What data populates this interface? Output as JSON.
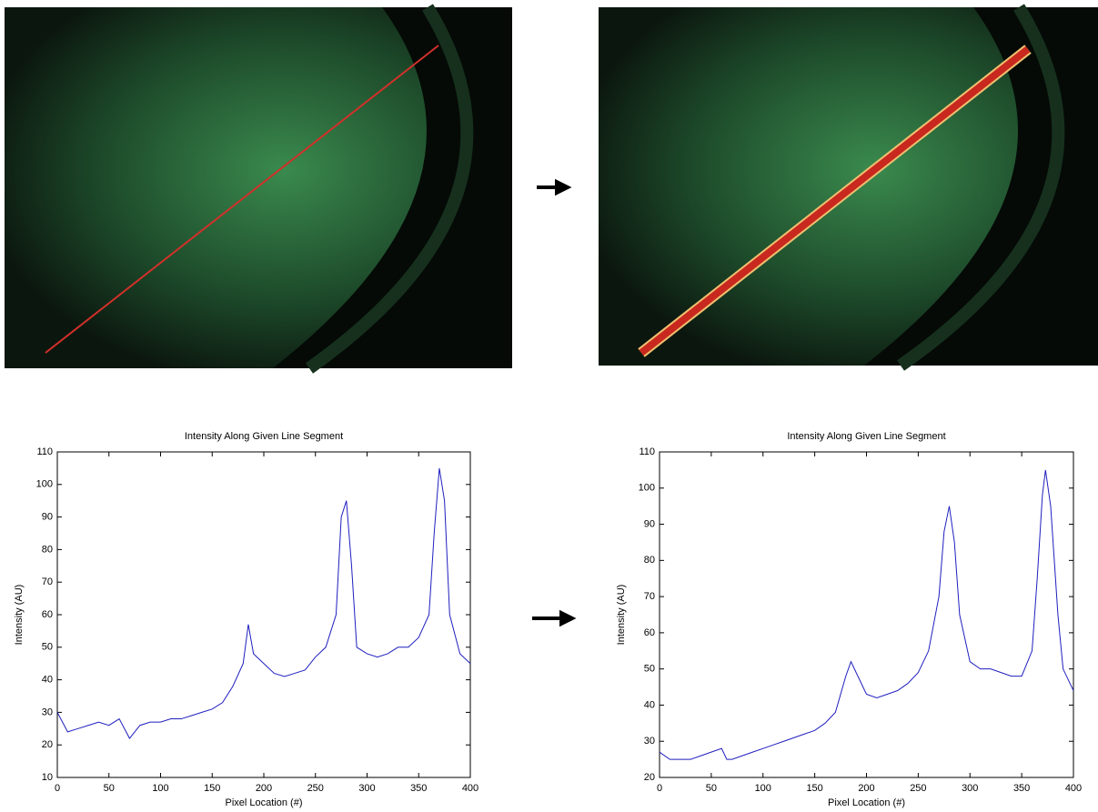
{
  "chart_data": [
    {
      "type": "line",
      "title": "Intensity Along Given Line Segment",
      "x_label": "Pixel Location (#)",
      "y_label": "Intensity (AU)",
      "color": "#1f1fbf",
      "x": [
        0,
        10,
        20,
        30,
        40,
        50,
        60,
        70,
        80,
        90,
        100,
        110,
        120,
        130,
        140,
        150,
        160,
        170,
        180,
        185,
        190,
        200,
        210,
        220,
        230,
        240,
        250,
        260,
        270,
        275,
        280,
        285,
        290,
        300,
        310,
        320,
        330,
        340,
        350,
        360,
        365,
        370,
        375,
        380,
        390,
        400
      ],
      "values": [
        30,
        24,
        25,
        26,
        27,
        26,
        28,
        22,
        26,
        27,
        27,
        28,
        28,
        29,
        30,
        31,
        33,
        38,
        45,
        57,
        48,
        45,
        42,
        41,
        42,
        43,
        47,
        50,
        60,
        90,
        95,
        75,
        50,
        48,
        47,
        48,
        50,
        50,
        53,
        60,
        85,
        105,
        95,
        60,
        48,
        45
      ],
      "xlim": [
        0,
        400
      ],
      "ylim": [
        10,
        110
      ],
      "xticks": [
        0,
        50,
        100,
        150,
        200,
        250,
        300,
        350,
        400
      ],
      "yticks": [
        10,
        20,
        30,
        40,
        50,
        60,
        70,
        80,
        90,
        100,
        110
      ]
    },
    {
      "type": "line",
      "title": "Intensity Along Given Line Segment",
      "x_label": "Pixel Location (#)",
      "y_label": "Intensity (AU)",
      "color": "#1f1fbf",
      "x": [
        0,
        10,
        20,
        30,
        40,
        50,
        60,
        65,
        70,
        80,
        90,
        100,
        110,
        120,
        130,
        140,
        150,
        160,
        170,
        180,
        185,
        190,
        200,
        210,
        220,
        230,
        240,
        250,
        260,
        270,
        275,
        280,
        285,
        290,
        300,
        310,
        320,
        330,
        340,
        350,
        360,
        365,
        370,
        373,
        378,
        385,
        390,
        400
      ],
      "values": [
        27,
        25,
        25,
        25,
        26,
        27,
        28,
        25,
        25,
        26,
        27,
        28,
        29,
        30,
        31,
        32,
        33,
        35,
        38,
        48,
        52,
        49,
        43,
        42,
        43,
        44,
        46,
        49,
        55,
        70,
        88,
        95,
        85,
        65,
        52,
        50,
        50,
        49,
        48,
        48,
        55,
        75,
        98,
        105,
        95,
        65,
        50,
        44
      ],
      "xlim": [
        0,
        400
      ],
      "ylim": [
        20,
        110
      ],
      "xticks": [
        0,
        50,
        100,
        150,
        200,
        250,
        300,
        350,
        400
      ],
      "yticks": [
        20,
        30,
        40,
        50,
        60,
        70,
        80,
        90,
        100,
        110
      ]
    }
  ]
}
